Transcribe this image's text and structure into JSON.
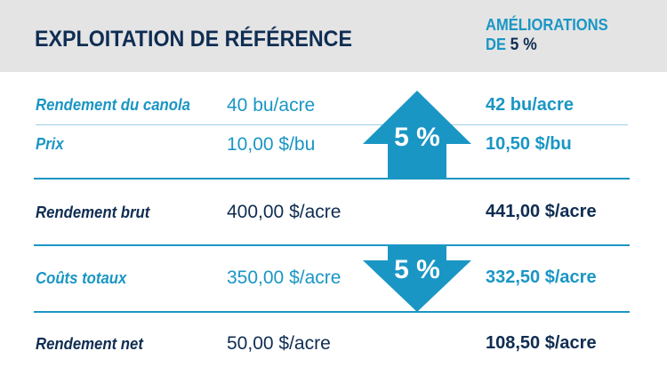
{
  "header": {
    "title": "EXPLOITATION DE RÉFÉRENCE",
    "improvements_line1": "AMÉLIORATIONS",
    "improvements_line2_prefix": "DE",
    "improvements_line2_pct": "5 %"
  },
  "rows": [
    {
      "label": "Rendement du canola",
      "base": "40 bu/acre",
      "improved": "42 bu/acre"
    },
    {
      "label": "Prix",
      "base": "10,00 $/bu",
      "improved": "10,50 $/bu"
    },
    {
      "label": "Rendement brut",
      "base": "400,00 $/acre",
      "improved": "441,00 $/acre"
    },
    {
      "label": "Coûts totaux",
      "base": "350,00 $/acre",
      "improved": "332,50 $/acre"
    },
    {
      "label": "Rendement net",
      "base": "50,00 $/acre",
      "improved": "108,50 $/acre"
    }
  ],
  "arrows": {
    "up_label": "5 %",
    "down_label": "5 %"
  },
  "colors": {
    "accent": "#1a96c4",
    "navy": "#0f2d52",
    "header_bg": "#e4e4e5"
  }
}
